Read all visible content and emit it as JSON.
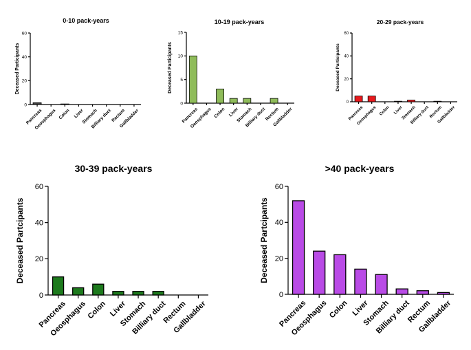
{
  "chart_data": [
    {
      "type": "bar",
      "title": "0-10 pack-years",
      "ylabel": "Deceased Participants",
      "xlabel": "",
      "categories": [
        "Pancreas",
        "Oeosphagus",
        "Colon",
        "Liver",
        "Stomach",
        "Billiary duct",
        "Rectum",
        "Gallbladder"
      ],
      "values": [
        1.5,
        0,
        0.5,
        0,
        0,
        0,
        0,
        0
      ],
      "ylim": [
        0,
        60
      ],
      "yticks": [
        0,
        20,
        40,
        60
      ],
      "bar_color": "#404040",
      "grid": false,
      "legend": "none"
    },
    {
      "type": "bar",
      "title": "10-19 pack-years",
      "ylabel": "Deceased Participants",
      "xlabel": "",
      "categories": [
        "Pancreas",
        "Oeosphagus",
        "Colon",
        "Liver",
        "Stomach",
        "Billiary duct",
        "Rectum",
        "Gallbladder"
      ],
      "values": [
        10,
        0,
        3,
        1,
        1,
        0,
        1,
        0
      ],
      "ylim": [
        0,
        15
      ],
      "yticks": [
        0,
        5,
        10,
        15
      ],
      "bar_color": "#8fbc5a",
      "grid": false,
      "legend": "none"
    },
    {
      "type": "bar",
      "title": "20-29 pack-years",
      "ylabel": "Deceased Participants",
      "xlabel": "",
      "categories": [
        "Pancreas",
        "Oeosphagus",
        "Colon",
        "Liver",
        "Stomach",
        "Billiary duct",
        "Rectum",
        "Gallbladder"
      ],
      "values": [
        5,
        5,
        0,
        0.5,
        1.5,
        0,
        0.5,
        0
      ],
      "ylim": [
        0,
        60
      ],
      "yticks": [
        0,
        20,
        40,
        60
      ],
      "bar_color": "#e8191d",
      "grid": false,
      "legend": "none"
    },
    {
      "type": "bar",
      "title": "30-39 pack-years",
      "ylabel": "Deceased Partcipants",
      "xlabel": "",
      "categories": [
        "Pancreas",
        "Oeosphagus",
        "Colon",
        "Liver",
        "Stomach",
        "Billiary duct",
        "Rectum",
        "Gallbladder"
      ],
      "values": [
        10,
        4,
        6,
        2,
        2,
        2,
        0,
        0
      ],
      "ylim": [
        0,
        60
      ],
      "yticks": [
        0,
        20,
        40,
        60
      ],
      "bar_color": "#1d7a1d",
      "grid": false,
      "legend": "none"
    },
    {
      "type": "bar",
      "title": ">40 pack-years",
      "ylabel": "Deceased Partcipants",
      "xlabel": "",
      "categories": [
        "Pancreas",
        "Oeosphagus",
        "Colon",
        "Liver",
        "Stomach",
        "Billiary duct",
        "Rectum",
        "Gallbladder"
      ],
      "values": [
        52,
        24,
        22,
        14,
        11,
        3,
        2,
        1
      ],
      "ylim": [
        0,
        60
      ],
      "yticks": [
        0,
        20,
        40,
        60
      ],
      "bar_color": "#b94be6",
      "grid": false,
      "legend": "none"
    }
  ]
}
